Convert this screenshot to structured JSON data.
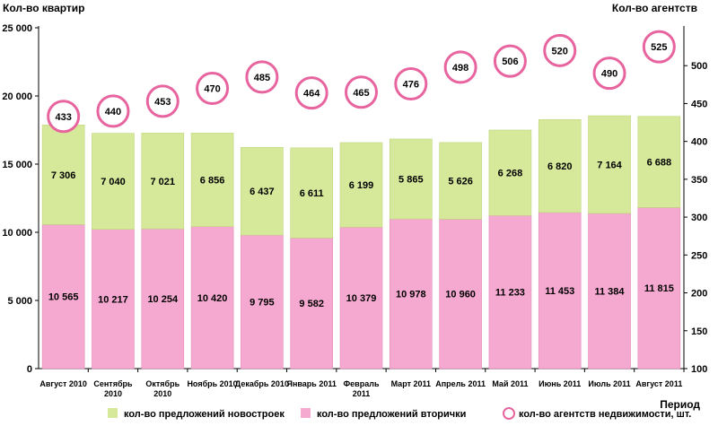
{
  "chart_data": {
    "type": "bar",
    "stacked": true,
    "left_axis_title": "Кол-во квартир",
    "right_axis_title": "Кол-во агентств",
    "x_axis_title": "Период",
    "left_ticks": [
      "0",
      "5 000",
      "10 000",
      "15 000",
      "20 000",
      "25 000"
    ],
    "right_ticks": [
      "100",
      "150",
      "200",
      "250",
      "300",
      "350",
      "400",
      "450",
      "500"
    ],
    "ylim_left": [
      0,
      25000
    ],
    "ylim_right": [
      100,
      550
    ],
    "categories": [
      "Август 2010",
      "Сентябрь 2010",
      "Октябрь 2010",
      "Ноябрь 2010",
      "Декабрь 2010",
      "Январь 2011",
      "Февраль 2011",
      "Март 2011",
      "Апрель 2011",
      "Май 2011",
      "Июнь 2011",
      "Июль 2011",
      "Август 2011"
    ],
    "category_labels": [
      [
        "Август 2010"
      ],
      [
        "Сентябрь",
        "2010"
      ],
      [
        "Октябрь",
        "2010"
      ],
      [
        "Ноябрь 2010"
      ],
      [
        "Декабрь 2010"
      ],
      [
        "Январь 2011"
      ],
      [
        "Февраль",
        "2011"
      ],
      [
        "Март 2011"
      ],
      [
        "Апрель 2011"
      ],
      [
        "Май 2011"
      ],
      [
        "Июнь 2011"
      ],
      [
        "Июль 2011"
      ],
      [
        "Август 2011"
      ]
    ],
    "series": [
      {
        "name": "кол-во предложений вторички",
        "color": "#f5a9d0",
        "axis": "left",
        "values": [
          10565,
          10217,
          10254,
          10420,
          9795,
          9582,
          10379,
          10978,
          10960,
          11233,
          11453,
          11384,
          11815
        ],
        "labels": [
          "10 565",
          "10 217",
          "10 254",
          "10 420",
          "9 795",
          "9 582",
          "10 379",
          "10 978",
          "10 960",
          "11 233",
          "11 453",
          "11 384",
          "11 815"
        ]
      },
      {
        "name": "кол-во предложений новостроек",
        "color": "#d6e99a",
        "axis": "left",
        "values": [
          7306,
          7040,
          7021,
          6856,
          6437,
          6611,
          6199,
          5865,
          5626,
          6268,
          6820,
          7164,
          6688
        ],
        "labels": [
          "7 306",
          "7 040",
          "7 021",
          "6 856",
          "6 437",
          "6 611",
          "6 199",
          "5 865",
          "5 626",
          "6 268",
          "6 820",
          "7 164",
          "6 688"
        ]
      },
      {
        "name": "кол-во агентств недвижимости, шт.",
        "type": "circles",
        "color": "#e8649f",
        "axis": "right",
        "values": [
          433,
          440,
          453,
          470,
          485,
          464,
          465,
          476,
          498,
          506,
          520,
          490,
          525
        ]
      }
    ],
    "legend": [
      {
        "label": "кол-во предложений новостроек",
        "color": "#d6e99a",
        "marker": "square"
      },
      {
        "label": "кол-во предложений вторички",
        "color": "#f5a9d0",
        "marker": "square"
      },
      {
        "label": "кол-во агентств недвижимости, шт.",
        "color": "#e8649f",
        "marker": "circle"
      }
    ],
    "legend_position": "bottom",
    "grid": false
  }
}
